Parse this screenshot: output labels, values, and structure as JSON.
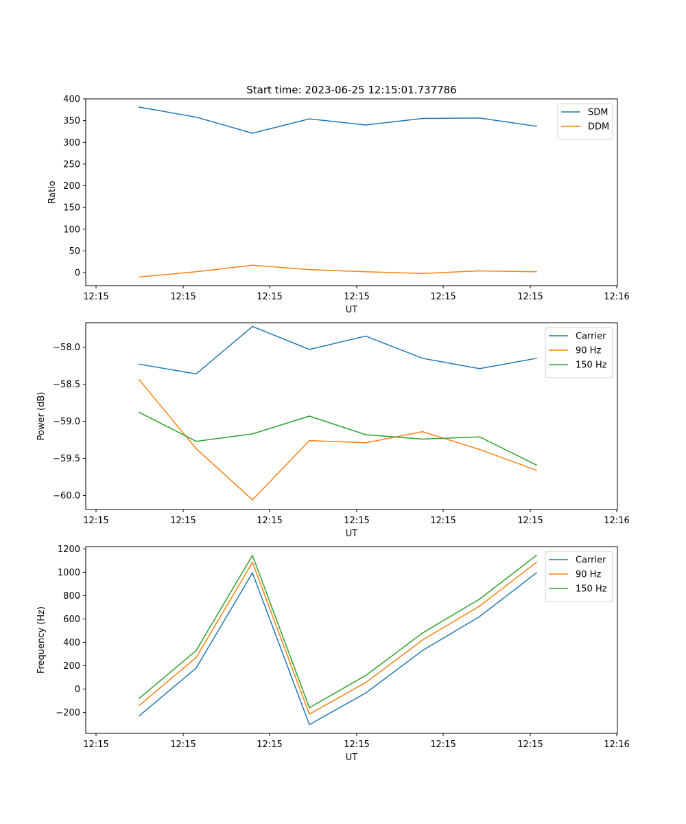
{
  "figure_title": "Start time: 2023-06-25 12:15:01.737786",
  "colors": {
    "blue": "#1f77b4",
    "orange": "#ff7f0e",
    "green": "#2ca02c"
  },
  "chart_data": [
    {
      "type": "line",
      "title": "Start time: 2023-06-25 12:15:01.737786",
      "xlabel": "UT",
      "ylabel": "Ratio",
      "x_tick_labels": [
        "12:15",
        "12:15",
        "12:15",
        "12:15",
        "12:15",
        "12:15",
        "12:16"
      ],
      "y_ticks": [
        0,
        50,
        100,
        150,
        200,
        250,
        300,
        350,
        400
      ],
      "y_tick_labels": [
        "0",
        "50",
        "100",
        "150",
        "200",
        "250",
        "300",
        "350",
        "400"
      ],
      "ylim": [
        -30,
        400
      ],
      "legend_position": "upper right",
      "series": [
        {
          "name": "SDM",
          "color": "#1f77b4",
          "values": [
            381,
            358,
            321,
            354,
            340,
            355,
            356,
            337
          ]
        },
        {
          "name": "DDM",
          "color": "#ff7f0e",
          "values": [
            -10,
            2,
            17,
            7,
            2,
            -2,
            4,
            2
          ]
        }
      ]
    },
    {
      "type": "line",
      "xlabel": "UT",
      "ylabel": "Power (dB)",
      "x_tick_labels": [
        "12:15",
        "12:15",
        "12:15",
        "12:15",
        "12:15",
        "12:15",
        "12:16"
      ],
      "y_ticks": [
        -60.0,
        -59.5,
        -59.0,
        -58.5,
        -58.0
      ],
      "y_tick_labels": [
        "−60.0",
        "−59.5",
        "−59.0",
        "−58.5",
        "−58.0"
      ],
      "ylim": [
        -60.19,
        -57.67
      ],
      "legend_position": "upper right",
      "series": [
        {
          "name": "Carrier",
          "color": "#1f77b4",
          "values": [
            -58.23,
            -58.36,
            -57.72,
            -58.03,
            -57.85,
            -58.15,
            -58.29,
            -58.15
          ]
        },
        {
          "name": "90 Hz",
          "color": "#ff7f0e",
          "values": [
            -58.44,
            -59.37,
            -60.06,
            -59.26,
            -59.29,
            -59.14,
            -59.38,
            -59.66
          ]
        },
        {
          "name": "150 Hz",
          "color": "#2ca02c",
          "values": [
            -58.88,
            -59.27,
            -59.17,
            -58.93,
            -59.18,
            -59.24,
            -59.21,
            -59.59
          ]
        }
      ]
    },
    {
      "type": "line",
      "xlabel": "UT",
      "ylabel": "Frequency (Hz)",
      "x_tick_labels": [
        "12:15",
        "12:15",
        "12:15",
        "12:15",
        "12:15",
        "12:15",
        "12:16"
      ],
      "y_ticks": [
        -200,
        0,
        200,
        400,
        600,
        800,
        1000,
        1200
      ],
      "y_tick_labels": [
        "−200",
        "0",
        "200",
        "400",
        "600",
        "800",
        "1000",
        "1200"
      ],
      "ylim": [
        -380,
        1220
      ],
      "legend_position": "upper right",
      "series": [
        {
          "name": "Carrier",
          "color": "#1f77b4",
          "values": [
            -230,
            180,
            995,
            -305,
            -35,
            330,
            620,
            995
          ]
        },
        {
          "name": "90 Hz",
          "color": "#ff7f0e",
          "values": [
            -140,
            270,
            1085,
            -215,
            55,
            420,
            710,
            1085
          ]
        },
        {
          "name": "150 Hz",
          "color": "#2ca02c",
          "values": [
            -80,
            330,
            1145,
            -160,
            115,
            480,
            770,
            1145
          ]
        }
      ]
    }
  ]
}
